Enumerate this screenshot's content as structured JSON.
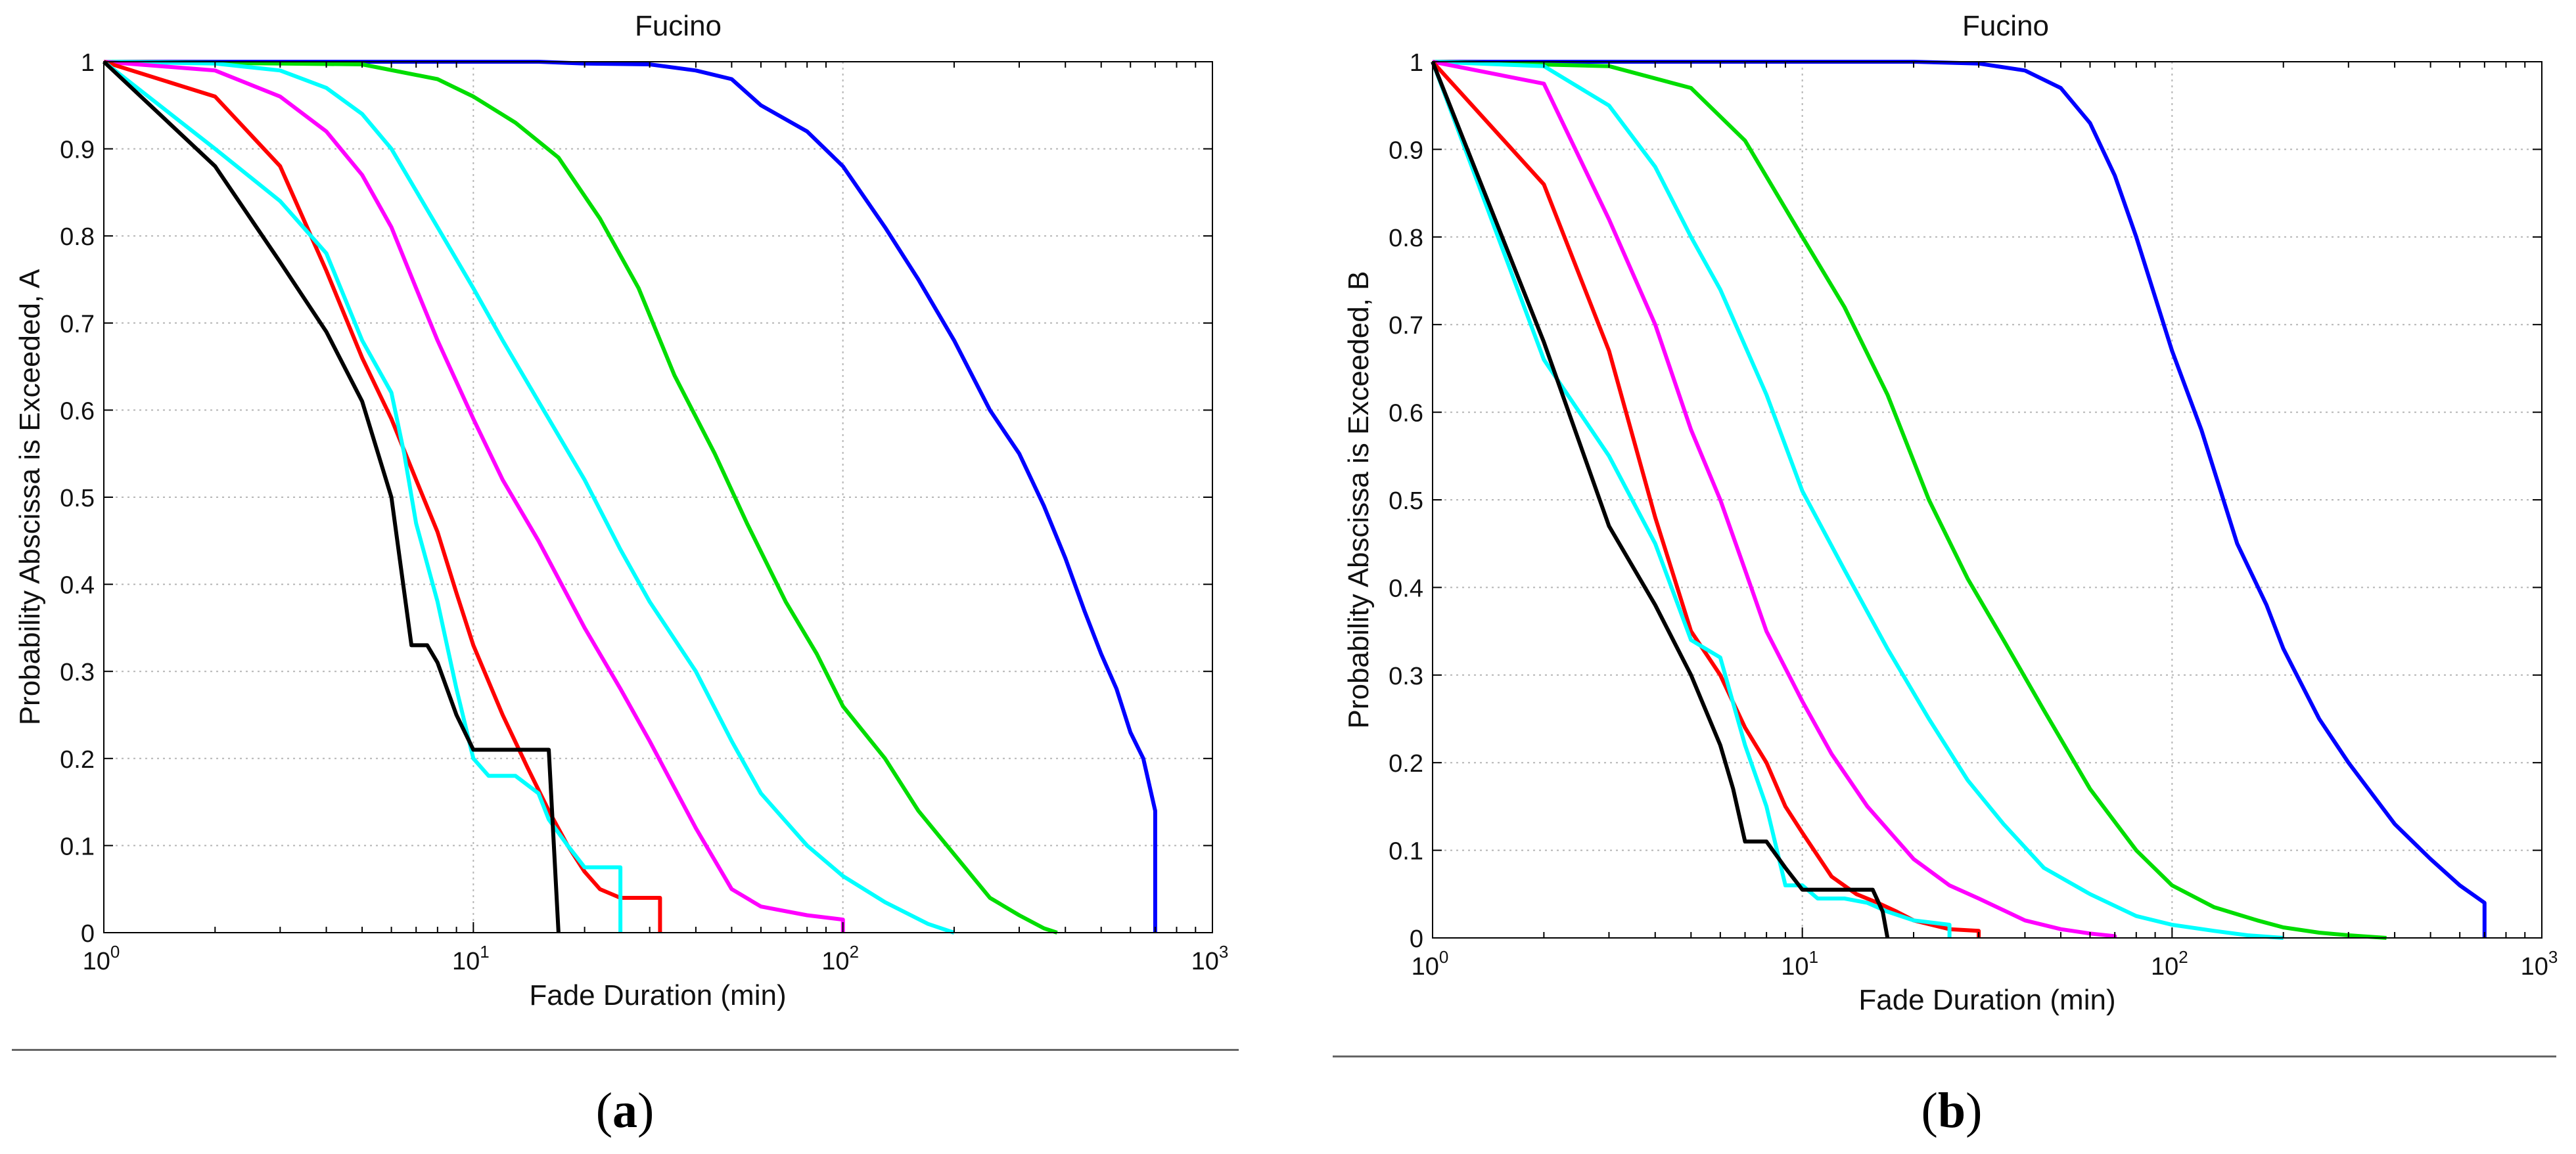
{
  "figure": {
    "panels": [
      {
        "caption_open": "(",
        "caption_letter": "a",
        "caption_close": ")"
      },
      {
        "caption_open": "(",
        "caption_letter": "b",
        "caption_close": ")"
      }
    ]
  },
  "chart_data": [
    {
      "type": "line",
      "title": "Fucino",
      "xlabel": "Fade Duration (min)",
      "ylabel": "Probability Abscissa is Exceeded, A",
      "xscale": "log",
      "xlim": [
        1,
        1000
      ],
      "ylim": [
        0,
        1
      ],
      "grid": true,
      "xticks": [
        {
          "value": 1,
          "base": "10",
          "exp": "0"
        },
        {
          "value": 10,
          "base": "10",
          "exp": "1"
        },
        {
          "value": 100,
          "base": "10",
          "exp": "2"
        },
        {
          "value": 1000,
          "base": "10",
          "exp": "3"
        }
      ],
      "yticks": [
        "0",
        "0.1",
        "0.2",
        "0.3",
        "0.4",
        "0.5",
        "0.6",
        "0.7",
        "0.8",
        "0.9",
        "1"
      ],
      "series": [
        {
          "name": "blue",
          "color": "#0000ff",
          "x": [
            1,
            15,
            20,
            30,
            40,
            50,
            60,
            80,
            100,
            130,
            160,
            200,
            250,
            300,
            350,
            400,
            450,
            500,
            550,
            600,
            650,
            700,
            700
          ],
          "y": [
            1,
            1,
            0.998,
            0.997,
            0.99,
            0.98,
            0.95,
            0.92,
            0.88,
            0.81,
            0.75,
            0.68,
            0.6,
            0.55,
            0.49,
            0.43,
            0.37,
            0.32,
            0.28,
            0.23,
            0.2,
            0.14,
            0
          ]
        },
        {
          "name": "green",
          "color": "#00dd00",
          "x": [
            1,
            5,
            8,
            10,
            13,
            17,
            22,
            28,
            35,
            45,
            55,
            70,
            85,
            100,
            130,
            160,
            200,
            250,
            300,
            350,
            380
          ],
          "y": [
            1,
            0.997,
            0.98,
            0.96,
            0.93,
            0.89,
            0.82,
            0.74,
            0.64,
            0.55,
            0.47,
            0.38,
            0.32,
            0.26,
            0.2,
            0.14,
            0.09,
            0.04,
            0.02,
            0.005,
            0
          ]
        },
        {
          "name": "cyan-1",
          "color": "#00ffff",
          "x": [
            1,
            2,
            3,
            4,
            5,
            6,
            8,
            10,
            12,
            15,
            20,
            25,
            30,
            40,
            50,
            60,
            80,
            100,
            130,
            170,
            200
          ],
          "y": [
            1,
            0.998,
            0.99,
            0.97,
            0.94,
            0.9,
            0.81,
            0.74,
            0.68,
            0.61,
            0.52,
            0.44,
            0.38,
            0.3,
            0.22,
            0.16,
            0.1,
            0.065,
            0.035,
            0.01,
            0
          ]
        },
        {
          "name": "magenta",
          "color": "#ff00ff",
          "x": [
            1,
            2,
            3,
            4,
            5,
            6,
            7,
            8,
            10,
            12,
            15,
            20,
            25,
            30,
            40,
            50,
            60,
            80,
            100,
            100
          ],
          "y": [
            1,
            0.99,
            0.96,
            0.92,
            0.87,
            0.81,
            0.74,
            0.68,
            0.59,
            0.52,
            0.45,
            0.35,
            0.28,
            0.22,
            0.12,
            0.05,
            0.03,
            0.02,
            0.015,
            0
          ]
        },
        {
          "name": "red",
          "color": "#ff0000",
          "x": [
            1,
            2,
            3,
            4,
            5,
            6,
            7,
            8,
            9,
            10,
            12,
            14,
            16,
            18,
            20,
            22,
            25,
            30,
            32,
            32
          ],
          "y": [
            1,
            0.96,
            0.88,
            0.76,
            0.66,
            0.59,
            0.52,
            0.46,
            0.39,
            0.33,
            0.25,
            0.19,
            0.14,
            0.1,
            0.07,
            0.05,
            0.04,
            0.04,
            0.04,
            0
          ]
        },
        {
          "name": "cyan-2",
          "color": "#00ffff",
          "x": [
            1,
            2,
            3,
            4,
            5,
            6,
            6.5,
            7,
            8,
            9,
            10,
            11,
            13,
            15,
            16,
            18,
            20,
            22,
            25,
            25
          ],
          "y": [
            1,
            0.9,
            0.84,
            0.78,
            0.68,
            0.62,
            0.55,
            0.47,
            0.38,
            0.28,
            0.2,
            0.18,
            0.18,
            0.16,
            0.13,
            0.1,
            0.075,
            0.075,
            0.075,
            0
          ]
        },
        {
          "name": "black",
          "color": "#000000",
          "x": [
            1,
            2,
            3,
            4,
            5,
            6,
            6.8,
            7.5,
            8,
            9,
            10,
            13,
            16,
            17,
            17
          ],
          "y": [
            1,
            0.88,
            0.77,
            0.69,
            0.61,
            0.5,
            0.33,
            0.33,
            0.31,
            0.25,
            0.21,
            0.21,
            0.21,
            0,
            0
          ]
        }
      ]
    },
    {
      "type": "line",
      "title": "Fucino",
      "xlabel": "Fade Duration (min)",
      "ylabel": "Probability Abscissa is Exceeded, B",
      "xscale": "log",
      "xlim": [
        1,
        1000
      ],
      "ylim": [
        0,
        1
      ],
      "grid": true,
      "xticks": [
        {
          "value": 1,
          "base": "10",
          "exp": "0"
        },
        {
          "value": 10,
          "base": "10",
          "exp": "1"
        },
        {
          "value": 100,
          "base": "10",
          "exp": "2"
        },
        {
          "value": 1000,
          "base": "10",
          "exp": "3"
        }
      ],
      "yticks": [
        "0",
        "0.1",
        "0.2",
        "0.3",
        "0.4",
        "0.5",
        "0.6",
        "0.7",
        "0.8",
        "0.9",
        "1"
      ],
      "series": [
        {
          "name": "blue",
          "color": "#0000ff",
          "x": [
            1,
            20,
            30,
            40,
            50,
            60,
            70,
            80,
            100,
            120,
            150,
            180,
            200,
            250,
            300,
            400,
            500,
            600,
            700,
            700
          ],
          "y": [
            1,
            1,
            0.998,
            0.99,
            0.97,
            0.93,
            0.87,
            0.8,
            0.67,
            0.58,
            0.45,
            0.38,
            0.33,
            0.25,
            0.2,
            0.13,
            0.09,
            0.06,
            0.04,
            0
          ]
        },
        {
          "name": "green",
          "color": "#00dd00",
          "x": [
            1,
            3,
            5,
            7,
            10,
            13,
            17,
            22,
            28,
            35,
            45,
            60,
            80,
            100,
            130,
            170,
            200,
            250,
            300,
            380
          ],
          "y": [
            1,
            0.995,
            0.97,
            0.91,
            0.8,
            0.72,
            0.62,
            0.5,
            0.41,
            0.34,
            0.26,
            0.17,
            0.1,
            0.06,
            0.035,
            0.02,
            0.012,
            0.006,
            0.003,
            0
          ]
        },
        {
          "name": "cyan-1",
          "color": "#00ffff",
          "x": [
            1,
            2,
            3,
            4,
            5,
            6,
            8,
            10,
            13,
            17,
            22,
            28,
            35,
            45,
            60,
            80,
            100,
            130,
            160,
            200
          ],
          "y": [
            1,
            0.995,
            0.95,
            0.88,
            0.8,
            0.74,
            0.62,
            0.51,
            0.42,
            0.33,
            0.25,
            0.18,
            0.13,
            0.08,
            0.05,
            0.025,
            0.015,
            0.008,
            0.003,
            0
          ]
        },
        {
          "name": "magenta",
          "color": "#ff00ff",
          "x": [
            1,
            2,
            3,
            4,
            5,
            6,
            7,
            8,
            10,
            12,
            15,
            20,
            25,
            30,
            40,
            50,
            60,
            70,
            70
          ],
          "y": [
            1,
            0.975,
            0.82,
            0.7,
            0.58,
            0.5,
            0.42,
            0.35,
            0.27,
            0.21,
            0.15,
            0.09,
            0.06,
            0.045,
            0.02,
            0.01,
            0.005,
            0.002,
            0
          ]
        },
        {
          "name": "red",
          "color": "#ff0000",
          "x": [
            1,
            2,
            3,
            4,
            5,
            6,
            7,
            8,
            9,
            10,
            12,
            14,
            16,
            18,
            20,
            25,
            30,
            30
          ],
          "y": [
            1,
            0.86,
            0.67,
            0.48,
            0.35,
            0.3,
            0.24,
            0.2,
            0.15,
            0.12,
            0.07,
            0.05,
            0.04,
            0.03,
            0.02,
            0.01,
            0.008,
            0
          ]
        },
        {
          "name": "cyan-2",
          "color": "#00ffff",
          "x": [
            1,
            2,
            3,
            4,
            5,
            6,
            7,
            8,
            9,
            10,
            11,
            13,
            15,
            17,
            20,
            25,
            25
          ],
          "y": [
            1,
            0.66,
            0.55,
            0.45,
            0.34,
            0.32,
            0.22,
            0.15,
            0.06,
            0.06,
            0.045,
            0.045,
            0.04,
            0.03,
            0.02,
            0.015,
            0
          ]
        },
        {
          "name": "black",
          "color": "#000000",
          "x": [
            1,
            2,
            3,
            4,
            5,
            6,
            6.5,
            7,
            8,
            9,
            10,
            12,
            14,
            15.5,
            16.5,
            17,
            17
          ],
          "y": [
            1,
            0.68,
            0.47,
            0.38,
            0.3,
            0.22,
            0.17,
            0.11,
            0.11,
            0.08,
            0.055,
            0.055,
            0.055,
            0.055,
            0.03,
            0,
            0
          ]
        }
      ]
    }
  ]
}
